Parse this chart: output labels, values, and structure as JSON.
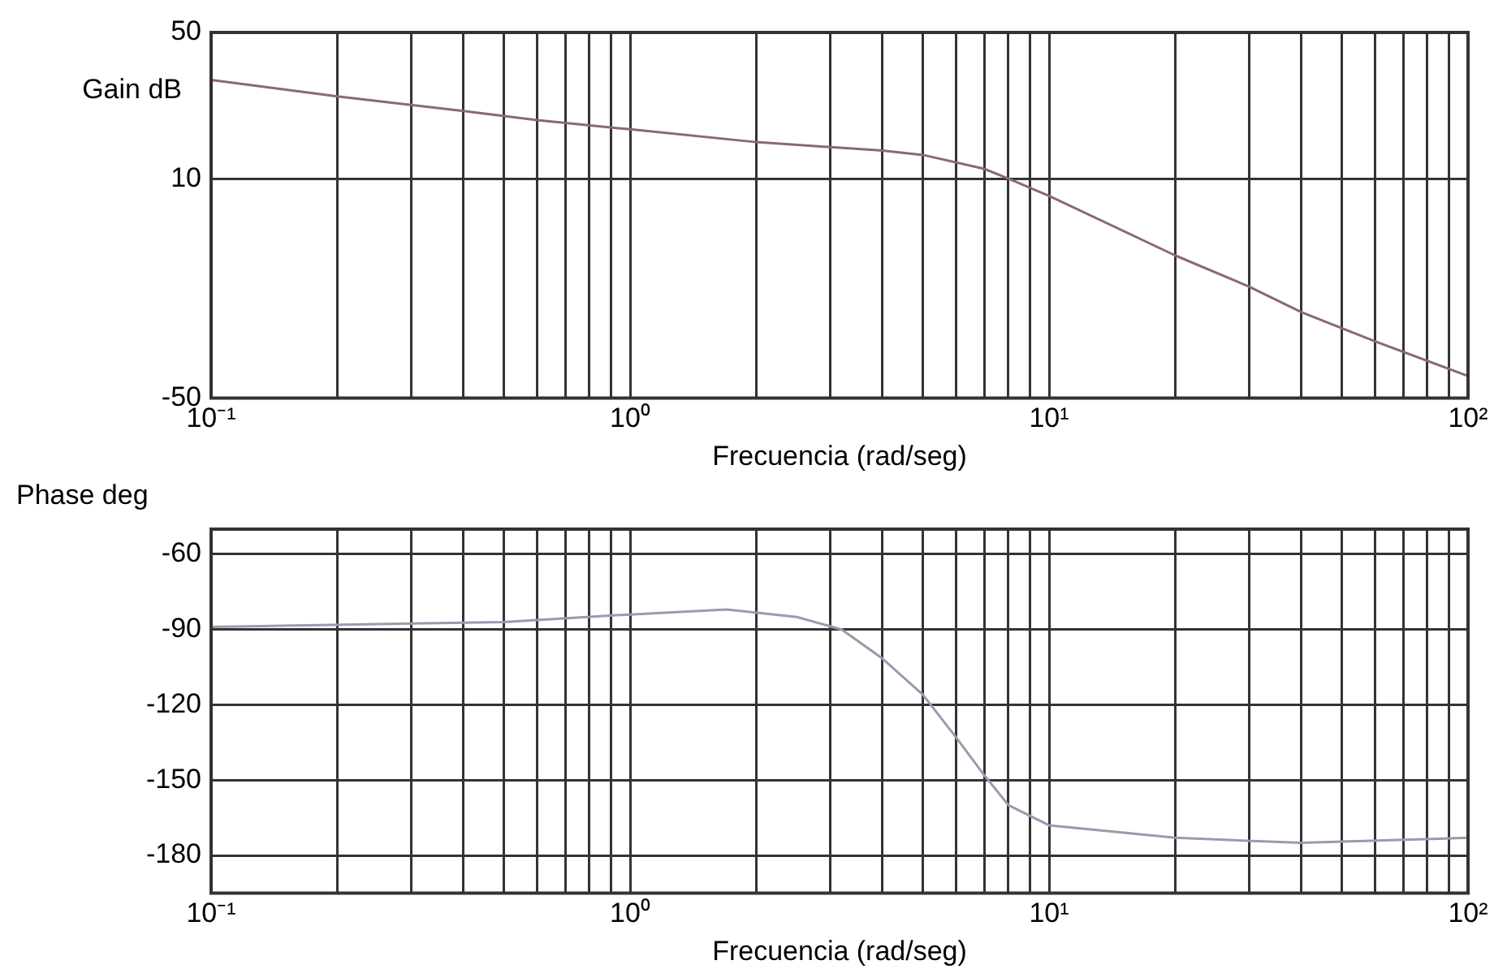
{
  "chart_data": [
    {
      "type": "line",
      "ylabel": "Gain dB",
      "xlabel": "Frecuencia (rad/seg)",
      "log": "x",
      "grid": true,
      "marker": "none",
      "xlim": [
        0.1,
        100
      ],
      "ylim": [
        -50,
        50
      ],
      "xticks": [
        {
          "value": 0.1,
          "label": "10⁻¹"
        },
        {
          "value": 0.2,
          "label": null
        },
        {
          "value": 0.3,
          "label": null
        },
        {
          "value": 0.4,
          "label": null
        },
        {
          "value": 0.5,
          "label": null
        },
        {
          "value": 0.6,
          "label": null
        },
        {
          "value": 0.7,
          "label": null
        },
        {
          "value": 0.8,
          "label": null
        },
        {
          "value": 0.9,
          "label": null
        },
        {
          "value": 1,
          "label": "10⁰"
        },
        {
          "value": 2,
          "label": null
        },
        {
          "value": 3,
          "label": null
        },
        {
          "value": 4,
          "label": null
        },
        {
          "value": 5,
          "label": null
        },
        {
          "value": 6,
          "label": null
        },
        {
          "value": 7,
          "label": null
        },
        {
          "value": 8,
          "label": null
        },
        {
          "value": 9,
          "label": null
        },
        {
          "value": 10,
          "label": "10¹"
        },
        {
          "value": 20,
          "label": null
        },
        {
          "value": 30,
          "label": null
        },
        {
          "value": 40,
          "label": null
        },
        {
          "value": 50,
          "label": null
        },
        {
          "value": 60,
          "label": null
        },
        {
          "value": 70,
          "label": null
        },
        {
          "value": 80,
          "label": null
        },
        {
          "value": 90,
          "label": null
        },
        {
          "value": 100,
          "label": "10²"
        }
      ],
      "yticks": [
        -50,
        10,
        50
      ],
      "series": [
        {
          "color": "#8b6a6a",
          "x": [
            0.1,
            0.2,
            0.4,
            0.6,
            1,
            2,
            4,
            5,
            7,
            8,
            10,
            20,
            30,
            40,
            60,
            100
          ],
          "values": [
            37,
            32.5,
            28.5,
            26,
            23.5,
            20,
            17.7,
            16.5,
            12.7,
            10,
            5.3,
            -11,
            -19.5,
            -26.5,
            -34.5,
            -44
          ]
        }
      ]
    },
    {
      "type": "line",
      "ylabel": "Phase deg",
      "xlabel": "Frecuencia (rad/seg)",
      "log": "x",
      "grid": true,
      "marker": "none",
      "xlim": [
        0.1,
        100
      ],
      "ylim": [
        -195,
        -50
      ],
      "xticks": [
        {
          "value": 0.1,
          "label": "10⁻¹"
        },
        {
          "value": 0.2,
          "label": null
        },
        {
          "value": 0.3,
          "label": null
        },
        {
          "value": 0.4,
          "label": null
        },
        {
          "value": 0.5,
          "label": null
        },
        {
          "value": 0.6,
          "label": null
        },
        {
          "value": 0.7,
          "label": null
        },
        {
          "value": 0.8,
          "label": null
        },
        {
          "value": 0.9,
          "label": null
        },
        {
          "value": 1,
          "label": "10⁰"
        },
        {
          "value": 2,
          "label": null
        },
        {
          "value": 3,
          "label": null
        },
        {
          "value": 4,
          "label": null
        },
        {
          "value": 5,
          "label": null
        },
        {
          "value": 6,
          "label": null
        },
        {
          "value": 7,
          "label": null
        },
        {
          "value": 8,
          "label": null
        },
        {
          "value": 9,
          "label": null
        },
        {
          "value": 10,
          "label": "10¹"
        },
        {
          "value": 20,
          "label": null
        },
        {
          "value": 30,
          "label": null
        },
        {
          "value": 40,
          "label": null
        },
        {
          "value": 50,
          "label": null
        },
        {
          "value": 60,
          "label": null
        },
        {
          "value": 70,
          "label": null
        },
        {
          "value": 80,
          "label": null
        },
        {
          "value": 90,
          "label": null
        },
        {
          "value": 100,
          "label": "10²"
        }
      ],
      "yticks": [
        -60,
        -90,
        -120,
        -150,
        -180
      ],
      "series": [
        {
          "color": "#9a9aae",
          "x": [
            0.1,
            0.5,
            1,
            1.7,
            2.5,
            3.2,
            4,
            5,
            6,
            7,
            8,
            10,
            20,
            40,
            100
          ],
          "values": [
            -89,
            -87,
            -84,
            -82,
            -85,
            -90,
            -101.5,
            -116,
            -133,
            -148,
            -160,
            -168,
            -173,
            -175,
            -173
          ]
        }
      ]
    }
  ]
}
